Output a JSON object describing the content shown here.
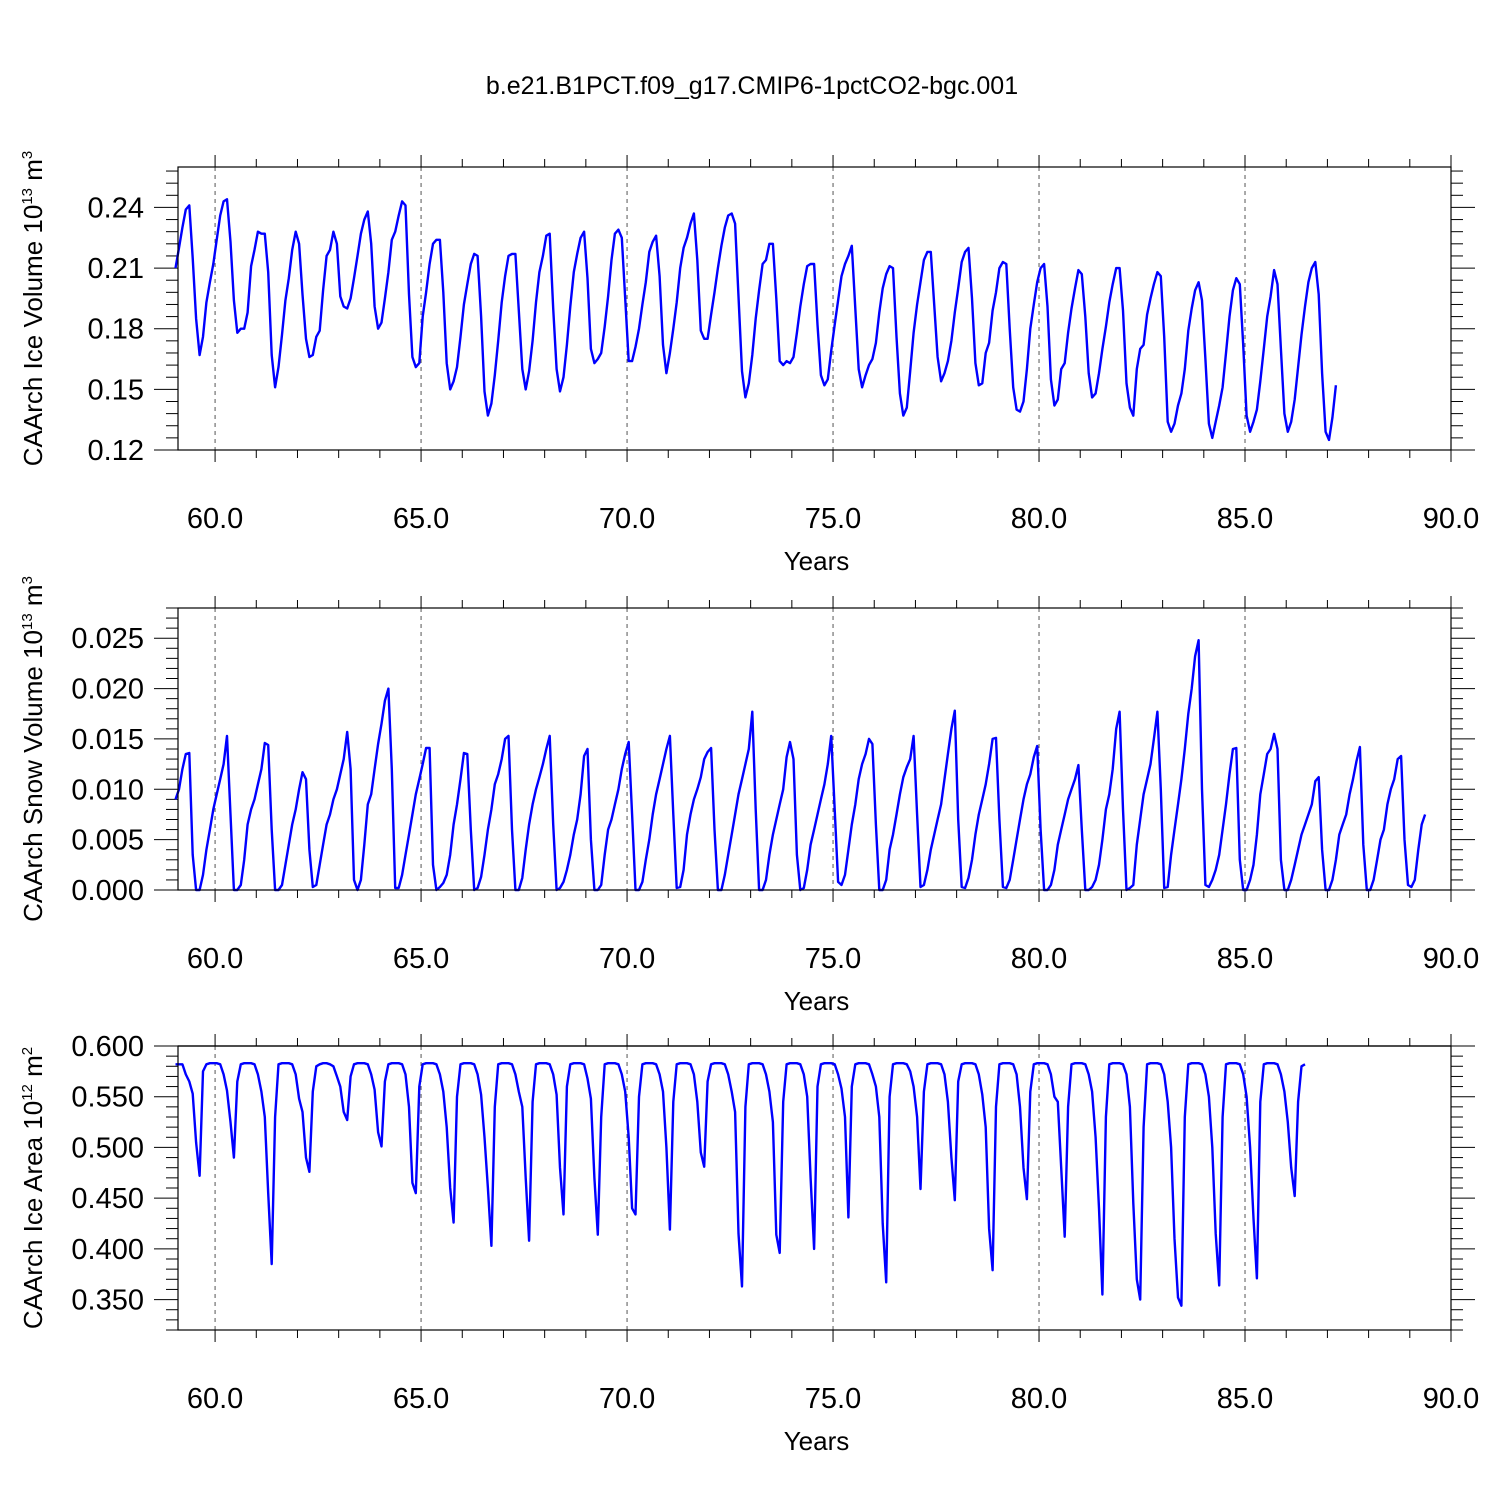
{
  "figure": {
    "title": "b.e21.B1PCT.f09_g17.CMIP6-1pctCO2-bgc.001",
    "line_color": "#0000ff"
  },
  "chart_data": [
    {
      "type": "line",
      "name": "ice-volume",
      "ylabel": {
        "main": "CAArch Ice Volume 10",
        "exp": "13",
        "unit": " m",
        "unit_exp": "3"
      },
      "xlabel": "Years",
      "xlim": [
        59.1,
        90.0
      ],
      "ylim": [
        0.12,
        0.26
      ],
      "xticks": [
        60,
        65,
        70,
        75,
        80,
        85,
        90
      ],
      "xtick_labels": [
        "60.0",
        "65.0",
        "70.0",
        "75.0",
        "80.0",
        "85.0",
        "90.0"
      ],
      "yticks": [
        0.12,
        0.15,
        0.18,
        0.21,
        0.24
      ],
      "ytick_labels": [
        "0.12",
        "0.15",
        "0.18",
        "0.21",
        "0.24"
      ],
      "grid": "vertical dashed at major x ticks",
      "x_start": 59.04,
      "x_step": 0.08333,
      "values": [
        0.21,
        0.22,
        0.23,
        0.239,
        0.241,
        0.215,
        0.185,
        0.167,
        0.176,
        0.193,
        0.203,
        0.212,
        0.224,
        0.236,
        0.243,
        0.244,
        0.223,
        0.194,
        0.178,
        0.18,
        0.18,
        0.188,
        0.211,
        0.219,
        0.228,
        0.227,
        0.227,
        0.208,
        0.167,
        0.151,
        0.161,
        0.177,
        0.194,
        0.205,
        0.219,
        0.228,
        0.222,
        0.197,
        0.175,
        0.166,
        0.167,
        0.176,
        0.179,
        0.199,
        0.216,
        0.219,
        0.228,
        0.222,
        0.196,
        0.191,
        0.19,
        0.195,
        0.205,
        0.216,
        0.227,
        0.234,
        0.238,
        0.222,
        0.191,
        0.18,
        0.183,
        0.195,
        0.208,
        0.224,
        0.228,
        0.236,
        0.243,
        0.241,
        0.197,
        0.166,
        0.161,
        0.163,
        0.186,
        0.198,
        0.212,
        0.222,
        0.224,
        0.224,
        0.198,
        0.163,
        0.15,
        0.154,
        0.161,
        0.176,
        0.192,
        0.202,
        0.212,
        0.217,
        0.216,
        0.186,
        0.149,
        0.137,
        0.143,
        0.157,
        0.174,
        0.193,
        0.206,
        0.216,
        0.217,
        0.217,
        0.189,
        0.16,
        0.15,
        0.159,
        0.174,
        0.193,
        0.208,
        0.216,
        0.226,
        0.227,
        0.19,
        0.16,
        0.149,
        0.156,
        0.172,
        0.191,
        0.208,
        0.217,
        0.225,
        0.228,
        0.205,
        0.17,
        0.163,
        0.165,
        0.168,
        0.181,
        0.196,
        0.214,
        0.227,
        0.229,
        0.225,
        0.195,
        0.164,
        0.164,
        0.171,
        0.18,
        0.192,
        0.203,
        0.218,
        0.223,
        0.226,
        0.206,
        0.172,
        0.158,
        0.168,
        0.18,
        0.193,
        0.21,
        0.22,
        0.225,
        0.232,
        0.237,
        0.214,
        0.179,
        0.175,
        0.175,
        0.187,
        0.198,
        0.21,
        0.221,
        0.23,
        0.236,
        0.237,
        0.232,
        0.196,
        0.159,
        0.146,
        0.153,
        0.167,
        0.185,
        0.199,
        0.212,
        0.214,
        0.222,
        0.222,
        0.195,
        0.164,
        0.162,
        0.164,
        0.163,
        0.166,
        0.178,
        0.191,
        0.202,
        0.211,
        0.212,
        0.212,
        0.182,
        0.157,
        0.152,
        0.155,
        0.169,
        0.182,
        0.194,
        0.206,
        0.212,
        0.216,
        0.221,
        0.19,
        0.16,
        0.151,
        0.157,
        0.162,
        0.165,
        0.173,
        0.188,
        0.2,
        0.207,
        0.211,
        0.21,
        0.176,
        0.148,
        0.137,
        0.141,
        0.159,
        0.178,
        0.192,
        0.203,
        0.214,
        0.218,
        0.218,
        0.192,
        0.166,
        0.154,
        0.158,
        0.164,
        0.174,
        0.188,
        0.2,
        0.213,
        0.218,
        0.22,
        0.195,
        0.163,
        0.152,
        0.153,
        0.168,
        0.173,
        0.189,
        0.198,
        0.21,
        0.213,
        0.212,
        0.18,
        0.151,
        0.14,
        0.139,
        0.144,
        0.16,
        0.18,
        0.192,
        0.203,
        0.21,
        0.212,
        0.191,
        0.155,
        0.142,
        0.145,
        0.16,
        0.163,
        0.178,
        0.19,
        0.2,
        0.209,
        0.207,
        0.186,
        0.158,
        0.146,
        0.148,
        0.158,
        0.17,
        0.181,
        0.193,
        0.202,
        0.21,
        0.21,
        0.189,
        0.153,
        0.141,
        0.137,
        0.16,
        0.17,
        0.172,
        0.187,
        0.195,
        0.202,
        0.208,
        0.206,
        0.176,
        0.134,
        0.129,
        0.133,
        0.142,
        0.148,
        0.16,
        0.179,
        0.19,
        0.199,
        0.203,
        0.194,
        0.165,
        0.133,
        0.126,
        0.134,
        0.142,
        0.151,
        0.168,
        0.186,
        0.199,
        0.205,
        0.202,
        0.172,
        0.137,
        0.129,
        0.134,
        0.14,
        0.154,
        0.17,
        0.186,
        0.196,
        0.209,
        0.202,
        0.17,
        0.138,
        0.129,
        0.134,
        0.145,
        0.161,
        0.177,
        0.191,
        0.203,
        0.21,
        0.213,
        0.197,
        0.158,
        0.129,
        0.125,
        0.136,
        0.152
      ]
    },
    {
      "type": "line",
      "name": "snow-volume",
      "ylabel": {
        "main": "CAArch Snow Volume 10",
        "exp": "13",
        "unit": " m",
        "unit_exp": "3"
      },
      "xlabel": "Years",
      "xlim": [
        59.1,
        90.0
      ],
      "ylim": [
        0.0,
        0.028
      ],
      "xticks": [
        60,
        65,
        70,
        75,
        80,
        85,
        90
      ],
      "xtick_labels": [
        "60.0",
        "65.0",
        "70.0",
        "75.0",
        "80.0",
        "85.0",
        "90.0"
      ],
      "yticks": [
        0.0,
        0.005,
        0.01,
        0.015,
        0.02,
        0.025
      ],
      "ytick_labels": [
        "0.000",
        "0.005",
        "0.010",
        "0.015",
        "0.020",
        "0.025"
      ],
      "grid": "vertical dashed at major x ticks",
      "x_start": 59.04,
      "x_step": 0.08333,
      "values": [
        0.009,
        0.01,
        0.012,
        0.0135,
        0.0136,
        0.0035,
        0.0,
        0.0,
        0.0015,
        0.004,
        0.006,
        0.008,
        0.0095,
        0.011,
        0.0125,
        0.0153,
        0.0075,
        0.0,
        0.0,
        0.0005,
        0.003,
        0.0065,
        0.008,
        0.009,
        0.0105,
        0.012,
        0.0146,
        0.0144,
        0.006,
        0.0,
        0.0,
        0.0005,
        0.0025,
        0.0045,
        0.0065,
        0.008,
        0.01,
        0.0117,
        0.011,
        0.004,
        0.0003,
        0.0005,
        0.0025,
        0.0045,
        0.0065,
        0.0075,
        0.009,
        0.01,
        0.0115,
        0.013,
        0.0157,
        0.012,
        0.001,
        0.0,
        0.001,
        0.0045,
        0.0085,
        0.0095,
        0.012,
        0.0145,
        0.0165,
        0.0188,
        0.02,
        0.012,
        0.0002,
        0.0002,
        0.0015,
        0.0035,
        0.0055,
        0.0075,
        0.0095,
        0.011,
        0.0125,
        0.0141,
        0.0141,
        0.0025,
        0.0,
        0.0003,
        0.0007,
        0.0015,
        0.0035,
        0.0065,
        0.0085,
        0.011,
        0.0136,
        0.0135,
        0.006,
        0.0,
        0.0002,
        0.0013,
        0.0035,
        0.006,
        0.008,
        0.0105,
        0.0115,
        0.013,
        0.015,
        0.0153,
        0.006,
        0.0,
        0.0,
        0.0012,
        0.004,
        0.0065,
        0.0085,
        0.01,
        0.0112,
        0.0125,
        0.014,
        0.0153,
        0.0065,
        0.0,
        0.0002,
        0.0008,
        0.002,
        0.0035,
        0.0055,
        0.007,
        0.0095,
        0.0133,
        0.014,
        0.005,
        0.0,
        0.0,
        0.0005,
        0.0035,
        0.006,
        0.007,
        0.0085,
        0.01,
        0.012,
        0.0135,
        0.0147,
        0.0075,
        0.0,
        0.0,
        0.0008,
        0.003,
        0.005,
        0.0075,
        0.0095,
        0.011,
        0.0125,
        0.014,
        0.0153,
        0.0075,
        0.0002,
        0.0003,
        0.002,
        0.0055,
        0.0075,
        0.009,
        0.01,
        0.0112,
        0.013,
        0.0137,
        0.0141,
        0.006,
        0.0,
        0.0,
        0.0015,
        0.0035,
        0.0055,
        0.0075,
        0.0095,
        0.011,
        0.0125,
        0.014,
        0.0177,
        0.008,
        0.0,
        0.0,
        0.001,
        0.0035,
        0.0055,
        0.007,
        0.0085,
        0.01,
        0.0132,
        0.0147,
        0.013,
        0.0035,
        0.0,
        0.0002,
        0.002,
        0.0045,
        0.006,
        0.0075,
        0.009,
        0.0105,
        0.0125,
        0.0153,
        0.008,
        0.0008,
        0.0005,
        0.0015,
        0.004,
        0.0065,
        0.0085,
        0.011,
        0.0125,
        0.0135,
        0.015,
        0.0145,
        0.0065,
        0.0,
        0.0,
        0.001,
        0.004,
        0.0055,
        0.0075,
        0.0095,
        0.0112,
        0.0122,
        0.013,
        0.0153,
        0.0075,
        0.0003,
        0.0005,
        0.002,
        0.004,
        0.0055,
        0.007,
        0.0085,
        0.011,
        0.0135,
        0.016,
        0.0178,
        0.007,
        0.0003,
        0.0002,
        0.0012,
        0.003,
        0.0055,
        0.0075,
        0.009,
        0.0105,
        0.0125,
        0.015,
        0.0151,
        0.007,
        0.0003,
        0.0002,
        0.001,
        0.003,
        0.005,
        0.007,
        0.009,
        0.0105,
        0.0115,
        0.0132,
        0.0143,
        0.006,
        0.0,
        0.0,
        0.0005,
        0.002,
        0.0045,
        0.006,
        0.0075,
        0.009,
        0.01,
        0.011,
        0.0124,
        0.006,
        0.0,
        0.0,
        0.0003,
        0.001,
        0.0025,
        0.005,
        0.008,
        0.0095,
        0.012,
        0.016,
        0.0177,
        0.008,
        0.0,
        0.0002,
        0.0005,
        0.0045,
        0.007,
        0.0095,
        0.011,
        0.0125,
        0.015,
        0.0177,
        0.01,
        0.0002,
        0.0003,
        0.0035,
        0.006,
        0.0085,
        0.011,
        0.014,
        0.0175,
        0.02,
        0.0232,
        0.0248,
        0.01,
        0.0005,
        0.0003,
        0.001,
        0.002,
        0.0035,
        0.006,
        0.0085,
        0.0115,
        0.014,
        0.0141,
        0.003,
        0.0,
        0.0,
        0.001,
        0.0025,
        0.0055,
        0.0095,
        0.0115,
        0.0135,
        0.014,
        0.0155,
        0.014,
        0.003,
        0.0,
        0.0,
        0.001,
        0.0025,
        0.004,
        0.0055,
        0.0065,
        0.0075,
        0.0085,
        0.0108,
        0.0112,
        0.004,
        0.0,
        0.0,
        0.001,
        0.003,
        0.0055,
        0.0065,
        0.0075,
        0.0095,
        0.011,
        0.0128,
        0.0142,
        0.0045,
        0.0,
        0.0,
        0.001,
        0.003,
        0.005,
        0.006,
        0.0085,
        0.01,
        0.011,
        0.013,
        0.0133,
        0.005,
        0.0005,
        0.0003,
        0.001,
        0.004,
        0.0065,
        0.0075
      ]
    },
    {
      "type": "line",
      "name": "ice-area",
      "ylabel": {
        "main": "CAArch Ice Area 10",
        "exp": "12",
        "unit": " m",
        "unit_exp": "2"
      },
      "xlabel": "Years",
      "xlim": [
        59.1,
        90.0
      ],
      "ylim": [
        0.32,
        0.6
      ],
      "xticks": [
        60,
        65,
        70,
        75,
        80,
        85,
        90
      ],
      "xtick_labels": [
        "60.0",
        "65.0",
        "70.0",
        "75.0",
        "80.0",
        "85.0",
        "90.0"
      ],
      "yticks": [
        0.35,
        0.4,
        0.45,
        0.5,
        0.55,
        0.6
      ],
      "ytick_labels": [
        "0.350",
        "0.400",
        "0.450",
        "0.500",
        "0.550",
        "0.600"
      ],
      "grid": "vertical dashed at major x ticks + horizontal line at 0.600",
      "x_start": 59.04,
      "x_step": 0.08333,
      "values": [
        0.582,
        0.582,
        0.582,
        0.572,
        0.565,
        0.553,
        0.505,
        0.472,
        0.575,
        0.582,
        0.583,
        0.583,
        0.583,
        0.582,
        0.572,
        0.556,
        0.525,
        0.49,
        0.565,
        0.582,
        0.583,
        0.583,
        0.583,
        0.582,
        0.572,
        0.555,
        0.53,
        0.455,
        0.385,
        0.53,
        0.582,
        0.583,
        0.583,
        0.583,
        0.582,
        0.572,
        0.548,
        0.535,
        0.49,
        0.476,
        0.555,
        0.58,
        0.582,
        0.583,
        0.583,
        0.582,
        0.58,
        0.57,
        0.56,
        0.535,
        0.527,
        0.57,
        0.582,
        0.583,
        0.583,
        0.583,
        0.582,
        0.572,
        0.557,
        0.515,
        0.501,
        0.565,
        0.582,
        0.583,
        0.583,
        0.583,
        0.582,
        0.572,
        0.54,
        0.465,
        0.455,
        0.56,
        0.582,
        0.583,
        0.583,
        0.583,
        0.582,
        0.572,
        0.555,
        0.52,
        0.46,
        0.426,
        0.55,
        0.582,
        0.583,
        0.583,
        0.583,
        0.582,
        0.572,
        0.552,
        0.51,
        0.46,
        0.403,
        0.54,
        0.582,
        0.583,
        0.583,
        0.583,
        0.582,
        0.572,
        0.555,
        0.54,
        0.47,
        0.408,
        0.545,
        0.582,
        0.583,
        0.583,
        0.583,
        0.582,
        0.572,
        0.552,
        0.48,
        0.434,
        0.56,
        0.582,
        0.583,
        0.583,
        0.583,
        0.582,
        0.568,
        0.548,
        0.47,
        0.414,
        0.53,
        0.582,
        0.583,
        0.583,
        0.583,
        0.582,
        0.572,
        0.555,
        0.51,
        0.44,
        0.434,
        0.55,
        0.582,
        0.583,
        0.583,
        0.583,
        0.582,
        0.572,
        0.555,
        0.5,
        0.419,
        0.545,
        0.582,
        0.583,
        0.583,
        0.583,
        0.582,
        0.572,
        0.545,
        0.495,
        0.481,
        0.565,
        0.582,
        0.583,
        0.583,
        0.583,
        0.582,
        0.572,
        0.555,
        0.535,
        0.415,
        0.363,
        0.54,
        0.582,
        0.583,
        0.583,
        0.583,
        0.582,
        0.572,
        0.555,
        0.525,
        0.414,
        0.396,
        0.545,
        0.582,
        0.583,
        0.583,
        0.583,
        0.582,
        0.572,
        0.55,
        0.47,
        0.4,
        0.56,
        0.582,
        0.583,
        0.583,
        0.583,
        0.582,
        0.572,
        0.558,
        0.53,
        0.431,
        0.56,
        0.582,
        0.583,
        0.583,
        0.583,
        0.582,
        0.572,
        0.56,
        0.53,
        0.425,
        0.367,
        0.55,
        0.582,
        0.583,
        0.583,
        0.583,
        0.582,
        0.575,
        0.56,
        0.53,
        0.459,
        0.555,
        0.582,
        0.583,
        0.583,
        0.583,
        0.582,
        0.572,
        0.545,
        0.49,
        0.448,
        0.565,
        0.582,
        0.583,
        0.583,
        0.583,
        0.582,
        0.572,
        0.552,
        0.52,
        0.42,
        0.379,
        0.54,
        0.582,
        0.583,
        0.583,
        0.583,
        0.582,
        0.572,
        0.54,
        0.48,
        0.449,
        0.555,
        0.582,
        0.583,
        0.583,
        0.583,
        0.582,
        0.572,
        0.55,
        0.545,
        0.48,
        0.412,
        0.54,
        0.582,
        0.583,
        0.583,
        0.583,
        0.582,
        0.572,
        0.555,
        0.51,
        0.44,
        0.355,
        0.53,
        0.582,
        0.583,
        0.583,
        0.583,
        0.582,
        0.572,
        0.54,
        0.445,
        0.37,
        0.35,
        0.52,
        0.582,
        0.583,
        0.583,
        0.583,
        0.582,
        0.572,
        0.545,
        0.5,
        0.41,
        0.352,
        0.344,
        0.53,
        0.582,
        0.583,
        0.583,
        0.583,
        0.582,
        0.572,
        0.55,
        0.5,
        0.415,
        0.364,
        0.53,
        0.582,
        0.583,
        0.583,
        0.583,
        0.582,
        0.572,
        0.55,
        0.5,
        0.43,
        0.371,
        0.545,
        0.582,
        0.583,
        0.583,
        0.583,
        0.582,
        0.572,
        0.555,
        0.525,
        0.48,
        0.452,
        0.545,
        0.58,
        0.582
      ]
    }
  ]
}
